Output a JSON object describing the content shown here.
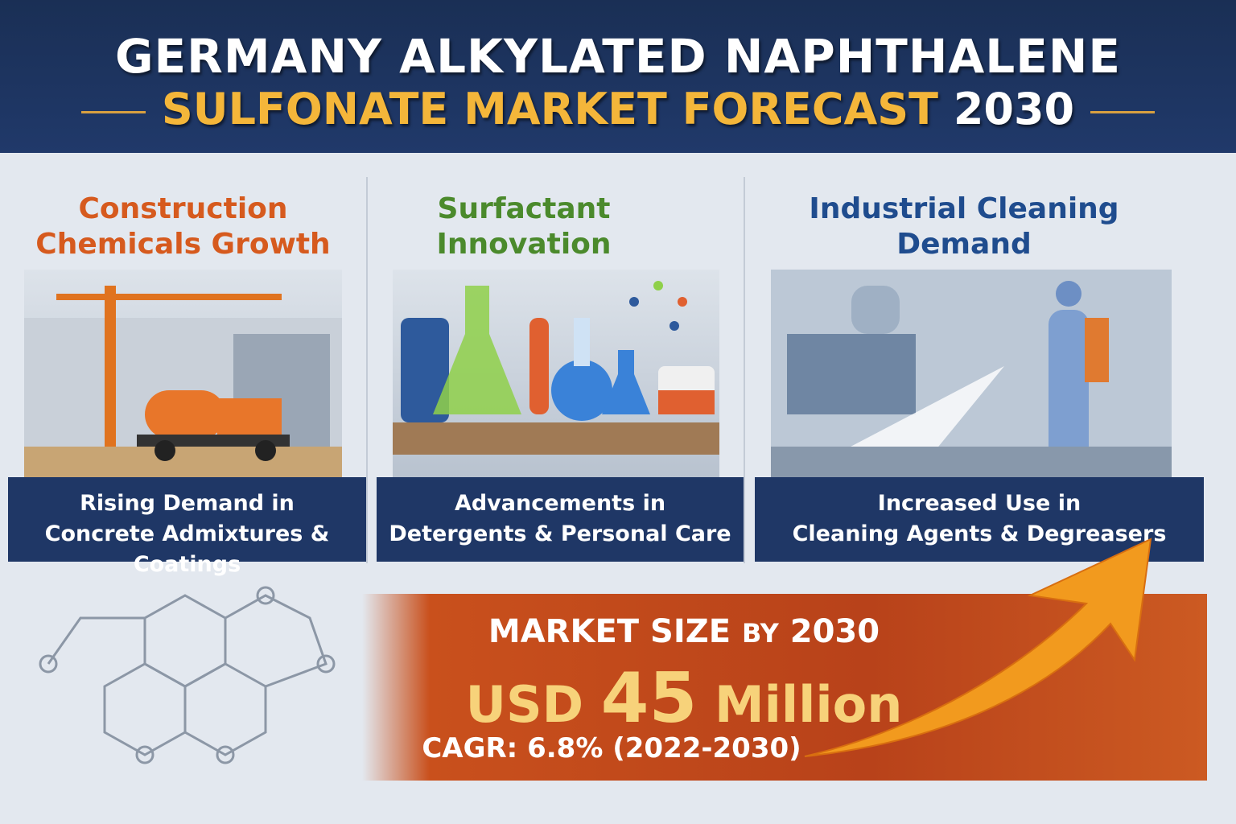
{
  "header": {
    "title_line1": "GERMANY ALKYLATED NAPHTHALENE",
    "title_line2_highlight": "SULFONATE MARKET FORECAST",
    "title_line2_year": "2030"
  },
  "panels": [
    {
      "title_line1": "Construction",
      "title_line2": "Chemicals Growth",
      "caption_line1": "Rising Demand in",
      "caption_line2": "Concrete Admixtures & Coatings",
      "color": "#d65a1e",
      "icon": "crane-truck-illustration"
    },
    {
      "title_line1": "Surfactant",
      "title_line2": "Innovation",
      "caption_line1": "Advancements in",
      "caption_line2": "Detergents & Personal Care",
      "color": "#4b8a2c",
      "icon": "lab-flasks-illustration"
    },
    {
      "title_line1": "Industrial Cleaning",
      "title_line2": "Demand",
      "caption_line1": "Increased Use in",
      "caption_line2": "Cleaning Agents & Degreasers",
      "color": "#1f4c8e",
      "icon": "pressure-washer-illustration"
    }
  ],
  "market": {
    "label_a": "MARKET SIZE",
    "label_b": "BY",
    "label_year": "2030",
    "currency": "USD",
    "value": "45",
    "unit": "Million",
    "cagr": "CAGR: 6.8% (2022-2030)"
  }
}
